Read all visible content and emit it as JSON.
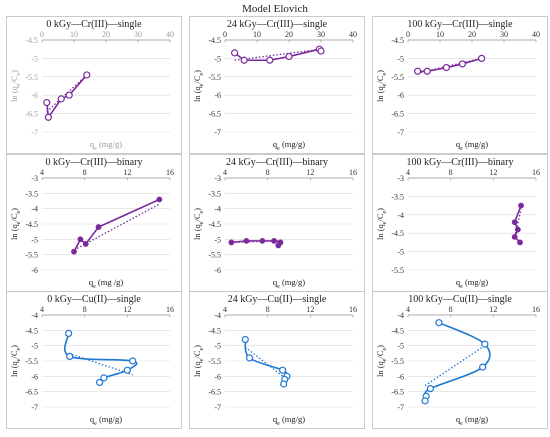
{
  "figure_title": "Model Elovich",
  "colors": {
    "cr": "#7b2a9c",
    "cu": "#1f78d1",
    "grid": "#d9d9d9",
    "frame": "#bfbfbf"
  },
  "chart_data": [
    {
      "type": "scatter",
      "title": "0 kGy—Cr(III)—single",
      "xlabel": "qe (mg/g)",
      "ylabel": "ln (qe/Ce)",
      "xlabel_main": "q",
      "xlabel_sub": "e",
      "xlabel_tail": " (mg/g)",
      "ylabel_head": "ln (q",
      "ylabel_sub": "e",
      "ylabel_tail": "/C",
      "ylabel_sub2": "e",
      "ylabel_end": ")",
      "muted_labels": true,
      "color": "cr",
      "marker": "circle",
      "line": "straight",
      "xlim": [
        0,
        40
      ],
      "xticks": [
        0,
        10,
        20,
        30,
        40
      ],
      "ylim": [
        -7,
        -4.5
      ],
      "yticks": [
        -4.5,
        -5,
        -5.5,
        -6,
        -6.5,
        -7
      ],
      "x_axis_at": "top",
      "points": [
        [
          1.5,
          -6.2
        ],
        [
          2,
          -6.6
        ],
        [
          6,
          -6.1
        ],
        [
          8.5,
          -6.0
        ],
        [
          14,
          -5.45
        ]
      ],
      "trend": [
        [
          1.5,
          -6.45
        ],
        [
          14,
          -5.45
        ]
      ]
    },
    {
      "type": "scatter",
      "title": "24 kGy—Cr(III)—single",
      "xlabel": "qe (mg/g)",
      "ylabel": "ln (qe/Ce)",
      "xlabel_main": "q",
      "xlabel_sub": "e",
      "xlabel_tail": " (mg/g)",
      "ylabel_head": "ln (q",
      "ylabel_sub": "e",
      "ylabel_tail": "/C",
      "ylabel_sub2": "e",
      "ylabel_end": ")",
      "color": "cr",
      "marker": "circle",
      "line": "straight",
      "xlim": [
        0,
        40
      ],
      "xticks": [
        0,
        10,
        20,
        30,
        40
      ],
      "ylim": [
        -7,
        -4.5
      ],
      "yticks": [
        -4.5,
        -5,
        -5.5,
        -6,
        -6.5,
        -7
      ],
      "x_axis_at": "top",
      "points": [
        [
          3,
          -4.85
        ],
        [
          6,
          -5.05
        ],
        [
          14,
          -5.05
        ],
        [
          20,
          -4.95
        ],
        [
          29.5,
          -4.75
        ],
        [
          30,
          -4.8
        ]
      ],
      "trend": [
        [
          3,
          -5.05
        ],
        [
          30,
          -4.75
        ]
      ]
    },
    {
      "type": "scatter",
      "title": "100 kGy—Cr(III)—single",
      "xlabel": "qe (mg/g)",
      "ylabel": "ln (qe/Ce)",
      "xlabel_main": "q",
      "xlabel_sub": "e",
      "xlabel_tail": " (mg/g)",
      "ylabel_head": "ln (q",
      "ylabel_sub": "e",
      "ylabel_tail": "/C",
      "ylabel_sub2": "e",
      "ylabel_end": ")",
      "color": "cr",
      "marker": "circle",
      "line": "straight",
      "xlim": [
        0,
        40
      ],
      "xticks": [
        0,
        10,
        20,
        30,
        40
      ],
      "ylim": [
        -7,
        -4.5
      ],
      "yticks": [
        -4.5,
        -5,
        -5.5,
        -6,
        -6.5,
        -7
      ],
      "x_axis_at": "top",
      "points": [
        [
          3,
          -5.35
        ],
        [
          6,
          -5.35
        ],
        [
          12,
          -5.25
        ],
        [
          17,
          -5.15
        ],
        [
          23,
          -5.0
        ]
      ],
      "trend": [
        [
          3,
          -5.4
        ],
        [
          23,
          -5.0
        ]
      ]
    },
    {
      "type": "scatter",
      "title": "0 kGy—Cr(III)—binary",
      "xlabel": "qe (mg /g)",
      "ylabel": "ln (qe/Ce)",
      "xlabel_main": "q",
      "xlabel_sub": "e",
      "xlabel_tail": " (mg /g)",
      "ylabel_head": "ln (q",
      "ylabel_sub": "e",
      "ylabel_tail": "/C",
      "ylabel_sub2": "e",
      "ylabel_end": ")",
      "color": "cr",
      "marker": "dot",
      "line": "straight",
      "xlim": [
        4,
        16
      ],
      "xticks": [
        4,
        8,
        12,
        16
      ],
      "ylim": [
        -6,
        -3
      ],
      "yticks": [
        -3,
        -3.5,
        -4,
        -4.5,
        -5,
        -5.5,
        -6
      ],
      "x_axis_at": "top",
      "points": [
        [
          7,
          -5.4
        ],
        [
          7.6,
          -5.0
        ],
        [
          8.1,
          -5.15
        ],
        [
          9.3,
          -4.6
        ],
        [
          15,
          -3.7
        ]
      ],
      "trend": [
        [
          7,
          -5.35
        ],
        [
          15,
          -3.85
        ]
      ]
    },
    {
      "type": "scatter",
      "title": "24 kGy—Cr(III)—binary",
      "xlabel": "qe (mg/g)",
      "ylabel": "ln (qe/Ce)",
      "xlabel_main": "q",
      "xlabel_sub": "e",
      "xlabel_tail": " (mg/g)",
      "ylabel_head": "ln (q",
      "ylabel_sub": "e",
      "ylabel_tail": "/C",
      "ylabel_sub2": "e",
      "ylabel_end": ")",
      "color": "cr",
      "marker": "dot",
      "line": "straight",
      "xlim": [
        4,
        16
      ],
      "xticks": [
        4,
        8,
        12,
        16
      ],
      "ylim": [
        -6,
        -3
      ],
      "yticks": [
        -3,
        -3.5,
        -4,
        -4.5,
        -5,
        -5.5,
        -6
      ],
      "x_axis_at": "top",
      "points": [
        [
          4.6,
          -5.1
        ],
        [
          6,
          -5.05
        ],
        [
          7.5,
          -5.05
        ],
        [
          8.6,
          -5.05
        ],
        [
          9.2,
          -5.1
        ],
        [
          9.0,
          -5.2
        ]
      ],
      "trend": [
        [
          4.6,
          -5.1
        ],
        [
          9.2,
          -5.05
        ]
      ]
    },
    {
      "type": "scatter",
      "title": "100 kGy—Cr(III)—binary",
      "xlabel": "qe (mg/g)",
      "ylabel": "ln (qe/Ce)",
      "xlabel_main": "q",
      "xlabel_sub": "e",
      "xlabel_tail": " (mg/g)",
      "ylabel_head": "ln (q",
      "ylabel_sub": "e",
      "ylabel_tail": "/C",
      "ylabel_sub2": "e",
      "ylabel_end": ")",
      "color": "cr",
      "marker": "dot",
      "line": "straight",
      "xlim": [
        4,
        16
      ],
      "xticks": [
        4,
        8,
        12,
        16
      ],
      "ylim": [
        -5.5,
        -3
      ],
      "yticks": [
        -3,
        -3.5,
        -4,
        -4.5,
        -5,
        -5.5
      ],
      "x_axis_at": "top",
      "points": [
        [
          14.6,
          -3.75
        ],
        [
          14.0,
          -4.2
        ],
        [
          14.3,
          -4.4
        ],
        [
          14.0,
          -4.6
        ],
        [
          14.5,
          -4.75
        ]
      ],
      "trend": [
        [
          14.0,
          -4.6
        ],
        [
          14.6,
          -3.85
        ]
      ]
    },
    {
      "type": "scatter",
      "title": "0 kGy—Cu(II)—single",
      "xlabel": "qe (mg/g)",
      "ylabel": "ln (qe/Ce)",
      "xlabel_main": "q",
      "xlabel_sub": "e",
      "xlabel_tail": " (mg/g)",
      "ylabel_head": "ln (q",
      "ylabel_sub": "e",
      "ylabel_tail": "/C",
      "ylabel_sub2": "e",
      "ylabel_end": ")",
      "color": "cu",
      "marker": "circle",
      "line": "smooth",
      "xlim": [
        4,
        16
      ],
      "xticks": [
        4,
        8,
        12,
        16
      ],
      "ylim": [
        -7,
        -4
      ],
      "yticks": [
        -4,
        -4.5,
        -5,
        -5.5,
        -6,
        -6.5,
        -7
      ],
      "x_axis_at": "top",
      "points": [
        [
          6.5,
          -4.6
        ],
        [
          6.6,
          -5.35
        ],
        [
          12.5,
          -5.5
        ],
        [
          12.0,
          -5.8
        ],
        [
          9.8,
          -6.05
        ],
        [
          9.4,
          -6.2
        ]
      ],
      "trend": [
        [
          6.5,
          -5.25
        ],
        [
          12.5,
          -5.95
        ]
      ]
    },
    {
      "type": "scatter",
      "title": "24 kGy—Cu(II)—single",
      "xlabel": "qe (mg/g)",
      "ylabel": "ln (qe/Ce)",
      "xlabel_main": "q",
      "xlabel_sub": "e",
      "xlabel_tail": " (mg/g)",
      "ylabel_head": "ln (q",
      "ylabel_sub": "e",
      "ylabel_tail": "/C",
      "ylabel_sub2": "e",
      "ylabel_end": ")",
      "color": "cu",
      "marker": "circle",
      "line": "smooth",
      "xlim": [
        4,
        16
      ],
      "xticks": [
        4,
        8,
        12,
        16
      ],
      "ylim": [
        -7,
        -4
      ],
      "yticks": [
        -4,
        -4.5,
        -5,
        -5.5,
        -6,
        -6.5,
        -7
      ],
      "x_axis_at": "top",
      "points": [
        [
          5.9,
          -4.8
        ],
        [
          6.3,
          -5.4
        ],
        [
          9.4,
          -5.8
        ],
        [
          9.8,
          -6.0
        ],
        [
          9.6,
          -6.1
        ],
        [
          9.5,
          -6.25
        ]
      ],
      "trend": [
        [
          5.9,
          -5.05
        ],
        [
          9.8,
          -6.1
        ]
      ]
    },
    {
      "type": "scatter",
      "title": "100 kGy—Cu(II)—single",
      "xlabel": "qe (mg/g)",
      "ylabel": "ln (qe/Ce)",
      "xlabel_main": "q",
      "xlabel_sub": "e",
      "xlabel_tail": " (mg/g)",
      "ylabel_head": "ln (q",
      "ylabel_sub": "e",
      "ylabel_tail": "/C",
      "ylabel_sub2": "e",
      "ylabel_end": ")",
      "color": "cu",
      "marker": "circle",
      "line": "smooth",
      "xlim": [
        4,
        16
      ],
      "xticks": [
        4,
        8,
        12,
        16
      ],
      "ylim": [
        -7,
        -4
      ],
      "yticks": [
        -4,
        -4.5,
        -5,
        -5.5,
        -6,
        -6.5,
        -7
      ],
      "x_axis_at": "top",
      "points": [
        [
          6.9,
          -4.25
        ],
        [
          11.2,
          -4.95
        ],
        [
          11.0,
          -5.7
        ],
        [
          6.1,
          -6.4
        ],
        [
          5.7,
          -6.65
        ],
        [
          5.6,
          -6.8
        ]
      ],
      "trend": [
        [
          5.6,
          -6.3
        ],
        [
          11.2,
          -5.0
        ]
      ]
    }
  ]
}
